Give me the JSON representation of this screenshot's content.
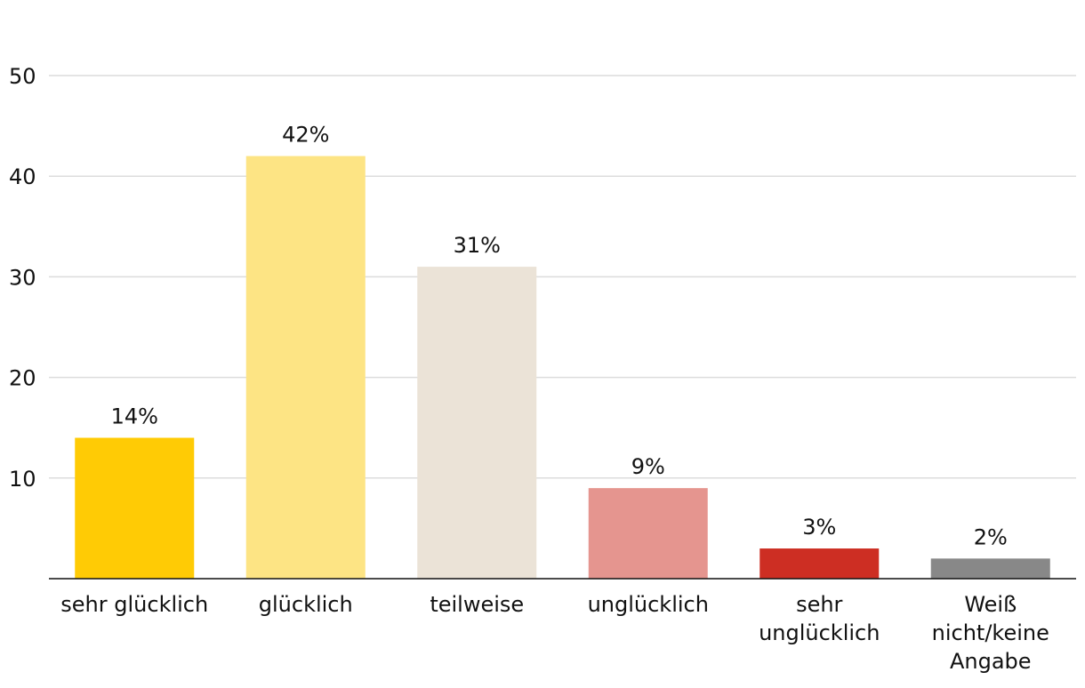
{
  "chart_data": {
    "type": "bar",
    "categories": [
      [
        "sehr glücklich"
      ],
      [
        "glücklich"
      ],
      [
        "teilweise"
      ],
      [
        "unglücklich"
      ],
      [
        "sehr",
        "unglücklich"
      ],
      [
        "Weiß",
        "nicht/keine",
        "Angabe"
      ]
    ],
    "values": [
      14,
      42,
      31,
      9,
      3,
      2
    ],
    "value_labels": [
      "14%",
      "42%",
      "31%",
      "9%",
      "3%",
      "2%"
    ],
    "colors": [
      "#ffcb05",
      "#fde484",
      "#ebe3d7",
      "#e5958f",
      "#cd2e23",
      "#888888"
    ],
    "ylim": [
      0,
      50
    ],
    "yticks": [
      10,
      20,
      30,
      40,
      50
    ],
    "ytick_labels": [
      "10",
      "20",
      "30",
      "40",
      "50"
    ],
    "grid": true,
    "title": "",
    "xlabel": "",
    "ylabel": ""
  }
}
